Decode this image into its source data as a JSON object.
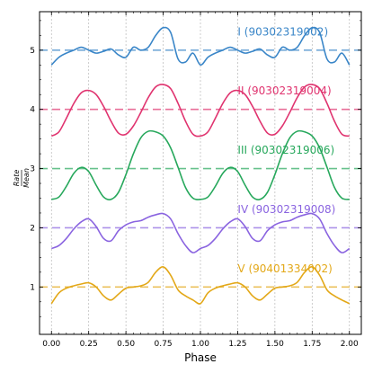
{
  "chart_data": {
    "type": "line",
    "xlabel": "Phase",
    "ylabel": "Rate / Mean",
    "ylabel_num": "Rate",
    "ylabel_den": "Mean",
    "xlim": [
      -0.08,
      2.08
    ],
    "ylim": [
      0.2,
      5.65
    ],
    "xticks": [
      "0.00",
      "0.25",
      "0.50",
      "0.75",
      "1.00",
      "1.25",
      "1.50",
      "1.75",
      "2.00"
    ],
    "yticks": [
      "1",
      "2",
      "3",
      "4",
      "5"
    ],
    "grid": "vertical dotted",
    "series": [
      {
        "name": "I (90302319002)",
        "color": "#3a86c8",
        "baseline": 5,
        "x": [
          0.0,
          0.05,
          0.1,
          0.15,
          0.2,
          0.25,
          0.3,
          0.35,
          0.4,
          0.45,
          0.5,
          0.55,
          0.6,
          0.65,
          0.7,
          0.75,
          0.8,
          0.85,
          0.9,
          0.95,
          1.0,
          1.05,
          1.1,
          1.15,
          1.2,
          1.25,
          1.3,
          1.35,
          1.4,
          1.45,
          1.5,
          1.55,
          1.6,
          1.65,
          1.7,
          1.75,
          1.8,
          1.85,
          1.9,
          1.95,
          2.0
        ],
        "y": [
          4.75,
          4.88,
          4.95,
          5.0,
          5.05,
          5.0,
          4.95,
          4.98,
          5.02,
          4.92,
          4.88,
          5.05,
          5.0,
          5.05,
          5.25,
          5.38,
          5.3,
          4.85,
          4.8,
          4.95,
          4.75,
          4.88,
          4.95,
          5.0,
          5.05,
          5.0,
          4.95,
          4.98,
          5.02,
          4.92,
          4.88,
          5.05,
          5.0,
          5.05,
          5.25,
          5.38,
          5.3,
          4.85,
          4.8,
          4.95,
          4.75
        ]
      },
      {
        "name": "II (90302319004)",
        "color": "#e0336f",
        "baseline": 4,
        "x": [
          0.0,
          0.05,
          0.1,
          0.15,
          0.2,
          0.25,
          0.3,
          0.35,
          0.4,
          0.45,
          0.5,
          0.55,
          0.6,
          0.65,
          0.7,
          0.75,
          0.8,
          0.85,
          0.9,
          0.95,
          1.0,
          1.05,
          1.1,
          1.15,
          1.2,
          1.25,
          1.3,
          1.35,
          1.4,
          1.45,
          1.5,
          1.55,
          1.6,
          1.65,
          1.7,
          1.75,
          1.8,
          1.85,
          1.9,
          1.95,
          2.0
        ],
        "y": [
          3.55,
          3.62,
          3.85,
          4.1,
          4.28,
          4.32,
          4.25,
          4.05,
          3.8,
          3.6,
          3.58,
          3.72,
          3.95,
          4.2,
          4.38,
          4.42,
          4.35,
          4.1,
          3.8,
          3.58,
          3.55,
          3.62,
          3.85,
          4.1,
          4.28,
          4.32,
          4.25,
          4.05,
          3.8,
          3.6,
          3.58,
          3.72,
          3.95,
          4.2,
          4.38,
          4.42,
          4.35,
          4.1,
          3.8,
          3.58,
          3.55
        ]
      },
      {
        "name": "III (90302319006)",
        "color": "#27a85c",
        "baseline": 3,
        "x": [
          0.0,
          0.05,
          0.1,
          0.15,
          0.2,
          0.25,
          0.3,
          0.35,
          0.4,
          0.45,
          0.5,
          0.55,
          0.6,
          0.65,
          0.7,
          0.75,
          0.8,
          0.85,
          0.9,
          0.95,
          1.0,
          1.05,
          1.1,
          1.15,
          1.2,
          1.25,
          1.3,
          1.35,
          1.4,
          1.45,
          1.5,
          1.55,
          1.6,
          1.65,
          1.7,
          1.75,
          1.8,
          1.85,
          1.9,
          1.95,
          2.0
        ],
        "y": [
          2.48,
          2.52,
          2.7,
          2.92,
          3.02,
          2.95,
          2.72,
          2.52,
          2.48,
          2.6,
          2.9,
          3.25,
          3.52,
          3.63,
          3.62,
          3.55,
          3.35,
          3.02,
          2.68,
          2.5,
          2.48,
          2.52,
          2.7,
          2.92,
          3.02,
          2.95,
          2.72,
          2.52,
          2.48,
          2.6,
          2.9,
          3.25,
          3.52,
          3.63,
          3.62,
          3.55,
          3.35,
          3.02,
          2.68,
          2.5,
          2.48
        ]
      },
      {
        "name": "IV (90302319008)",
        "color": "#8a64e0",
        "baseline": 2,
        "x": [
          0.0,
          0.05,
          0.1,
          0.15,
          0.2,
          0.25,
          0.3,
          0.35,
          0.4,
          0.45,
          0.5,
          0.55,
          0.6,
          0.65,
          0.7,
          0.75,
          0.8,
          0.85,
          0.9,
          0.95,
          1.0,
          1.05,
          1.1,
          1.15,
          1.2,
          1.25,
          1.3,
          1.35,
          1.4,
          1.45,
          1.5,
          1.55,
          1.6,
          1.65,
          1.7,
          1.75,
          1.8,
          1.85,
          1.9,
          1.95,
          2.0
        ],
        "y": [
          1.65,
          1.7,
          1.82,
          1.98,
          2.1,
          2.15,
          2.02,
          1.82,
          1.78,
          1.95,
          2.05,
          2.1,
          2.12,
          2.18,
          2.22,
          2.24,
          2.15,
          1.9,
          1.7,
          1.58,
          1.65,
          1.7,
          1.82,
          1.98,
          2.1,
          2.15,
          2.02,
          1.82,
          1.78,
          1.95,
          2.05,
          2.1,
          2.12,
          2.18,
          2.22,
          2.24,
          2.15,
          1.9,
          1.7,
          1.58,
          1.65
        ]
      },
      {
        "name": "V (90401334002)",
        "color": "#e3a818",
        "baseline": 1,
        "x": [
          0.0,
          0.05,
          0.1,
          0.15,
          0.2,
          0.25,
          0.3,
          0.35,
          0.4,
          0.45,
          0.5,
          0.55,
          0.6,
          0.65,
          0.7,
          0.75,
          0.8,
          0.85,
          0.9,
          0.95,
          1.0,
          1.05,
          1.1,
          1.15,
          1.2,
          1.25,
          1.3,
          1.35,
          1.4,
          1.45,
          1.5,
          1.55,
          1.6,
          1.65,
          1.7,
          1.75,
          1.8,
          1.85,
          1.9,
          1.95,
          2.0
        ],
        "y": [
          0.72,
          0.9,
          0.98,
          1.02,
          1.05,
          1.07,
          1.0,
          0.85,
          0.78,
          0.88,
          0.98,
          1.0,
          1.02,
          1.08,
          1.25,
          1.34,
          1.2,
          0.95,
          0.85,
          0.78,
          0.72,
          0.9,
          0.98,
          1.02,
          1.05,
          1.07,
          1.0,
          0.85,
          0.78,
          0.88,
          0.98,
          1.0,
          1.02,
          1.08,
          1.25,
          1.34,
          1.2,
          0.95,
          0.85,
          0.78,
          0.72
        ]
      }
    ]
  }
}
